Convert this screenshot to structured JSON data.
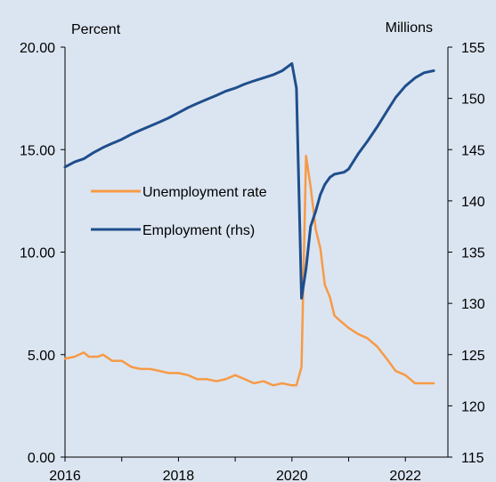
{
  "chart_data": {
    "type": "line",
    "left_axis": {
      "unit_label": "Percent",
      "ylim": [
        0,
        20
      ],
      "ticks": [
        "0.00",
        "5.00",
        "10.00",
        "15.00",
        "20.00"
      ]
    },
    "right_axis": {
      "unit_label": "Millions",
      "ylim": [
        115,
        155
      ],
      "ticks": [
        "115",
        "120",
        "125",
        "130",
        "135",
        "140",
        "145",
        "150",
        "155"
      ]
    },
    "x_axis": {
      "xlim": [
        2016,
        2022.75
      ],
      "ticks": [
        "2016",
        "2018",
        "2020",
        "2022"
      ]
    },
    "legend_placement": "center-left",
    "grid": false,
    "colors": {
      "background": "#dbe5f1",
      "unemployment": "#f79a46",
      "employment": "#1f4e8c"
    },
    "series": [
      {
        "name": "Unemployment rate",
        "axis": "left",
        "color": "#f79a46",
        "x": [
          2016.0,
          2016.17,
          2016.33,
          2016.42,
          2016.5,
          2016.58,
          2016.67,
          2016.83,
          2017.0,
          2017.17,
          2017.33,
          2017.5,
          2017.67,
          2017.83,
          2018.0,
          2018.17,
          2018.33,
          2018.5,
          2018.67,
          2018.83,
          2019.0,
          2019.17,
          2019.33,
          2019.5,
          2019.67,
          2019.83,
          2020.0,
          2020.08,
          2020.17,
          2020.25,
          2020.33,
          2020.42,
          2020.5,
          2020.58,
          2020.67,
          2020.75,
          2020.83,
          2021.0,
          2021.17,
          2021.33,
          2021.5,
          2021.67,
          2021.83,
          2022.0,
          2022.17,
          2022.33,
          2022.5
        ],
        "y": [
          4.8,
          4.9,
          5.1,
          4.9,
          4.9,
          4.9,
          5.0,
          4.7,
          4.7,
          4.4,
          4.3,
          4.3,
          4.2,
          4.1,
          4.1,
          4.0,
          3.8,
          3.8,
          3.7,
          3.8,
          4.0,
          3.8,
          3.6,
          3.7,
          3.5,
          3.6,
          3.5,
          3.5,
          4.4,
          14.7,
          13.2,
          11.1,
          10.2,
          8.4,
          7.8,
          6.9,
          6.7,
          6.3,
          6.0,
          5.8,
          5.4,
          4.8,
          4.2,
          4.0,
          3.6,
          3.6,
          3.6
        ]
      },
      {
        "name": "Employment (rhs)",
        "axis": "right",
        "color": "#1f4e8c",
        "x": [
          2016.0,
          2016.17,
          2016.33,
          2016.5,
          2016.67,
          2016.83,
          2017.0,
          2017.17,
          2017.33,
          2017.5,
          2017.67,
          2017.83,
          2018.0,
          2018.17,
          2018.33,
          2018.5,
          2018.67,
          2018.83,
          2019.0,
          2019.17,
          2019.33,
          2019.5,
          2019.67,
          2019.83,
          2020.0,
          2020.08,
          2020.17,
          2020.25,
          2020.33,
          2020.42,
          2020.5,
          2020.58,
          2020.67,
          2020.75,
          2020.83,
          2020.92,
          2021.0,
          2021.17,
          2021.33,
          2021.5,
          2021.67,
          2021.83,
          2022.0,
          2022.17,
          2022.33,
          2022.5
        ],
        "y": [
          143.3,
          143.8,
          144.1,
          144.7,
          145.2,
          145.6,
          146.0,
          146.5,
          146.9,
          147.3,
          147.7,
          148.1,
          148.6,
          149.1,
          149.5,
          149.9,
          150.3,
          150.7,
          151.0,
          151.4,
          151.7,
          152.0,
          152.3,
          152.7,
          153.4,
          151.0,
          130.5,
          133.4,
          137.5,
          139.0,
          140.6,
          141.6,
          142.3,
          142.6,
          142.7,
          142.8,
          143.1,
          144.6,
          145.8,
          147.2,
          148.7,
          150.1,
          151.2,
          152.0,
          152.5,
          152.7
        ]
      }
    ]
  }
}
